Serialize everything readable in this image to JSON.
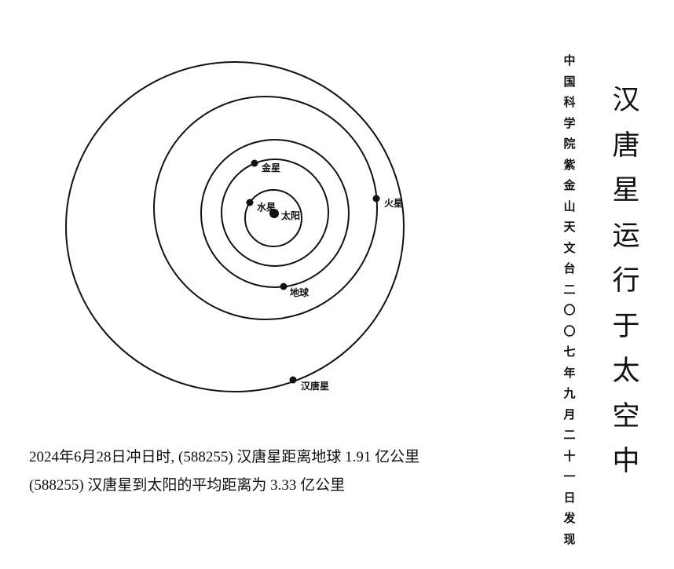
{
  "diagram": {
    "bodies": {
      "sun": "太阳",
      "mercury": "水星",
      "venus": "金星",
      "earth": "地球",
      "mars": "火星",
      "hantang": "汉唐星"
    }
  },
  "caption": {
    "line1": "2024年6月28日冲日时, (588255)  汉唐星距离地球  1.91  亿公里",
    "line2": "(588255)  汉唐星到太阳的平均距离为  3.33  亿公里"
  },
  "discovery_text": [
    "中",
    "国",
    "科",
    "学",
    "院",
    "紫",
    "金",
    "山",
    "天",
    "文",
    "台",
    "二",
    "〇",
    "〇",
    "七",
    "年",
    "九",
    "月",
    "二",
    "十",
    "一",
    "日",
    "发",
    "现"
  ],
  "title_text": [
    "汉",
    "唐",
    "星",
    "运",
    "行",
    "于",
    "太",
    "空",
    "中"
  ]
}
